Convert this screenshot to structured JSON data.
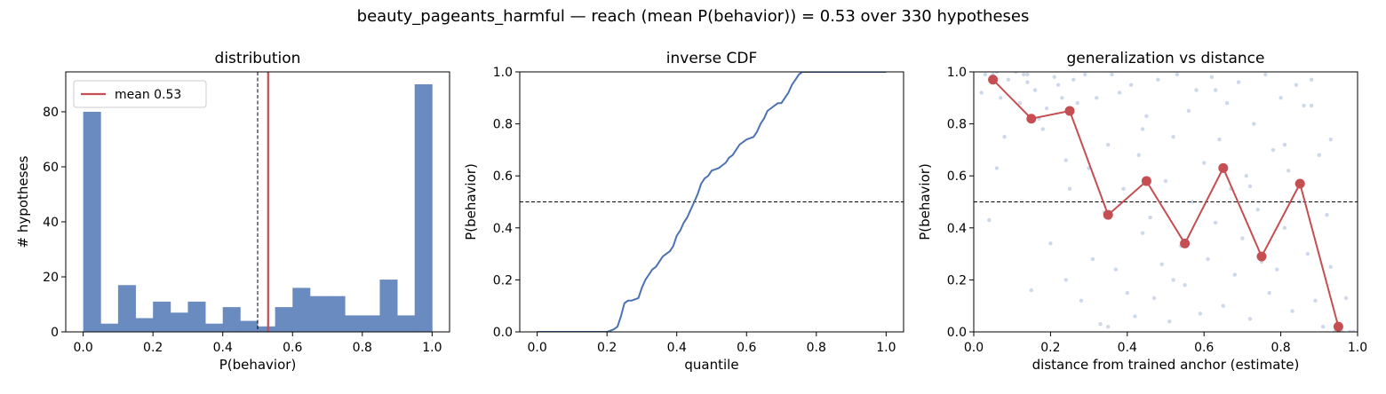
{
  "figure": {
    "suptitle": "beauty_pageants_harmful  —  reach (mean P(behavior)) = 0.53  over 330 hypotheses"
  },
  "colors": {
    "bar": "#6a8bbf",
    "line": "#4c72b0",
    "accent": "#c44e52",
    "scatter": "#b9c8e2",
    "reference": "#000000"
  },
  "chart_data": [
    {
      "type": "bar",
      "title": "distribution",
      "xlabel": "P(behavior)",
      "ylabel": "# hypotheses",
      "xlim": [
        -0.05,
        1.05
      ],
      "ylim": [
        0,
        94.5
      ],
      "xticks": [
        0.0,
        0.2,
        0.4,
        0.6,
        0.8,
        1.0
      ],
      "xtick_labels": [
        "0.0",
        "0.2",
        "0.4",
        "0.6",
        "0.8",
        "1.0"
      ],
      "yticks": [
        0,
        20,
        40,
        60,
        80
      ],
      "ytick_labels": [
        "0",
        "20",
        "40",
        "60",
        "80"
      ],
      "bin_edges": [
        0.0,
        0.05,
        0.1,
        0.15,
        0.2,
        0.25,
        0.3,
        0.35,
        0.4,
        0.45,
        0.5,
        0.55,
        0.6,
        0.65,
        0.7,
        0.75,
        0.8,
        0.85,
        0.9,
        0.95,
        1.0
      ],
      "values": [
        80,
        3,
        17,
        5,
        11,
        7,
        11,
        3,
        9,
        4,
        2,
        9,
        16,
        13,
        13,
        6,
        6,
        19,
        6,
        90
      ],
      "mean": 0.53,
      "reference_x": 0.5,
      "legend": {
        "label": "mean 0.53",
        "loc": "upper-left"
      }
    },
    {
      "type": "line",
      "title": "inverse CDF",
      "xlabel": "quantile",
      "ylabel": "P(behavior)",
      "xlim": [
        -0.05,
        1.05
      ],
      "ylim": [
        0,
        1
      ],
      "xticks": [
        0.0,
        0.2,
        0.4,
        0.6,
        0.8,
        1.0
      ],
      "xtick_labels": [
        "0.0",
        "0.2",
        "0.4",
        "0.6",
        "0.8",
        "1.0"
      ],
      "yticks": [
        0.0,
        0.2,
        0.4,
        0.6,
        0.8,
        1.0
      ],
      "ytick_labels": [
        "0.0",
        "0.2",
        "0.4",
        "0.6",
        "0.8",
        "1.0"
      ],
      "reference_y": 0.5,
      "x": [
        0.0,
        0.1,
        0.2,
        0.22,
        0.23,
        0.24,
        0.25,
        0.26,
        0.27,
        0.29,
        0.3,
        0.31,
        0.32,
        0.33,
        0.34,
        0.35,
        0.36,
        0.37,
        0.38,
        0.39,
        0.4,
        0.41,
        0.42,
        0.43,
        0.44,
        0.45,
        0.46,
        0.47,
        0.48,
        0.49,
        0.5,
        0.52,
        0.54,
        0.55,
        0.56,
        0.57,
        0.58,
        0.6,
        0.62,
        0.63,
        0.64,
        0.65,
        0.66,
        0.67,
        0.68,
        0.69,
        0.7,
        0.72,
        0.73,
        0.74,
        0.75,
        0.76,
        0.78,
        0.8,
        0.9,
        1.0
      ],
      "y": [
        0.0,
        0.0,
        0.0,
        0.01,
        0.02,
        0.06,
        0.11,
        0.12,
        0.12,
        0.13,
        0.17,
        0.2,
        0.22,
        0.24,
        0.25,
        0.27,
        0.29,
        0.3,
        0.31,
        0.33,
        0.37,
        0.39,
        0.42,
        0.44,
        0.47,
        0.5,
        0.53,
        0.57,
        0.59,
        0.6,
        0.62,
        0.63,
        0.65,
        0.67,
        0.68,
        0.7,
        0.72,
        0.74,
        0.75,
        0.77,
        0.8,
        0.82,
        0.85,
        0.86,
        0.87,
        0.88,
        0.88,
        0.92,
        0.95,
        0.97,
        0.99,
        1.0,
        1.0,
        1.0,
        1.0,
        1.0
      ]
    },
    {
      "type": "scatter",
      "title": "generalization vs distance",
      "xlabel": "distance from trained anchor (estimate)",
      "ylabel": "P(behavior)",
      "xlim": [
        0,
        1
      ],
      "ylim": [
        0,
        1
      ],
      "xticks": [
        0.0,
        0.2,
        0.4,
        0.6,
        0.8,
        1.0
      ],
      "xtick_labels": [
        "0.0",
        "0.2",
        "0.4",
        "0.6",
        "0.8",
        "1.0"
      ],
      "yticks": [
        0.0,
        0.2,
        0.4,
        0.6,
        0.8,
        1.0
      ],
      "ytick_labels": [
        "0.0",
        "0.2",
        "0.4",
        "0.6",
        "0.8",
        "1.0"
      ],
      "reference_y": 0.5,
      "binned_x": [
        0.05,
        0.15,
        0.25,
        0.35,
        0.45,
        0.55,
        0.65,
        0.75,
        0.85,
        0.95
      ],
      "binned_y": [
        0.97,
        0.82,
        0.85,
        0.45,
        0.58,
        0.34,
        0.63,
        0.29,
        0.57,
        0.02
      ],
      "points": [
        [
          0.02,
          0.92
        ],
        [
          0.03,
          0.99
        ],
        [
          0.04,
          0.43
        ],
        [
          0.05,
          0.99
        ],
        [
          0.06,
          1.0
        ],
        [
          0.07,
          0.9
        ],
        [
          0.08,
          0.75
        ],
        [
          0.09,
          0.97
        ],
        [
          0.11,
          1.0
        ],
        [
          0.12,
          0.88
        ],
        [
          0.13,
          0.99
        ],
        [
          0.14,
          0.96
        ],
        [
          0.15,
          0.16
        ],
        [
          0.16,
          0.93
        ],
        [
          0.17,
          0.82
        ],
        [
          0.18,
          0.78
        ],
        [
          0.19,
          0.86
        ],
        [
          0.2,
          0.34
        ],
        [
          0.21,
          0.98
        ],
        [
          0.22,
          0.95
        ],
        [
          0.23,
          0.9
        ],
        [
          0.24,
          0.2
        ],
        [
          0.25,
          0.55
        ],
        [
          0.26,
          0.97
        ],
        [
          0.27,
          0.88
        ],
        [
          0.28,
          0.12
        ],
        [
          0.29,
          0.99
        ],
        [
          0.3,
          0.63
        ],
        [
          0.31,
          0.28
        ],
        [
          0.32,
          0.9
        ],
        [
          0.33,
          0.03
        ],
        [
          0.34,
          0.46
        ],
        [
          0.35,
          0.72
        ],
        [
          0.36,
          0.99
        ],
        [
          0.37,
          0.24
        ],
        [
          0.38,
          0.92
        ],
        [
          0.39,
          0.55
        ],
        [
          0.4,
          0.15
        ],
        [
          0.41,
          0.95
        ],
        [
          0.42,
          0.06
        ],
        [
          0.43,
          0.68
        ],
        [
          0.44,
          0.38
        ],
        [
          0.45,
          0.83
        ],
        [
          0.46,
          0.44
        ],
        [
          0.47,
          0.13
        ],
        [
          0.48,
          0.97
        ],
        [
          0.49,
          0.26
        ],
        [
          0.5,
          0.58
        ],
        [
          0.51,
          0.04
        ],
        [
          0.52,
          0.75
        ],
        [
          0.53,
          0.99
        ],
        [
          0.54,
          0.33
        ],
        [
          0.55,
          0.18
        ],
        [
          0.56,
          0.85
        ],
        [
          0.57,
          0.5
        ],
        [
          0.58,
          0.93
        ],
        [
          0.59,
          0.07
        ],
        [
          0.6,
          0.65
        ],
        [
          0.61,
          0.28
        ],
        [
          0.62,
          0.98
        ],
        [
          0.63,
          0.42
        ],
        [
          0.64,
          0.74
        ],
        [
          0.65,
          0.1
        ],
        [
          0.66,
          0.88
        ],
        [
          0.67,
          0.55
        ],
        [
          0.68,
          0.22
        ],
        [
          0.69,
          0.96
        ],
        [
          0.7,
          0.36
        ],
        [
          0.71,
          0.6
        ],
        [
          0.72,
          0.05
        ],
        [
          0.73,
          0.8
        ],
        [
          0.74,
          0.47
        ],
        [
          0.75,
          0.27
        ],
        [
          0.76,
          0.99
        ],
        [
          0.77,
          0.15
        ],
        [
          0.78,
          0.7
        ],
        [
          0.79,
          0.24
        ],
        [
          0.8,
          0.9
        ],
        [
          0.81,
          0.4
        ],
        [
          0.82,
          0.62
        ],
        [
          0.83,
          0.08
        ],
        [
          0.84,
          0.95
        ],
        [
          0.85,
          0.5
        ],
        [
          0.86,
          0.87
        ],
        [
          0.87,
          0.3
        ],
        [
          0.88,
          0.97
        ],
        [
          0.89,
          0.12
        ],
        [
          0.9,
          0.68
        ],
        [
          0.91,
          0.02
        ],
        [
          0.92,
          0.45
        ],
        [
          0.93,
          0.25
        ],
        [
          0.94,
          0.0
        ],
        [
          0.95,
          0.01
        ],
        [
          0.96,
          0.0
        ],
        [
          0.97,
          0.13
        ],
        [
          0.98,
          0.0
        ],
        [
          0.99,
          0.0
        ],
        [
          0.06,
          0.63
        ],
        [
          0.14,
          0.99
        ],
        [
          0.24,
          0.66
        ],
        [
          0.35,
          0.02
        ],
        [
          0.44,
          0.78
        ],
        [
          0.52,
          0.2
        ],
        [
          0.63,
          0.93
        ],
        [
          0.72,
          0.56
        ],
        [
          0.81,
          0.72
        ],
        [
          0.88,
          0.87
        ],
        [
          0.93,
          0.74
        ]
      ]
    }
  ]
}
